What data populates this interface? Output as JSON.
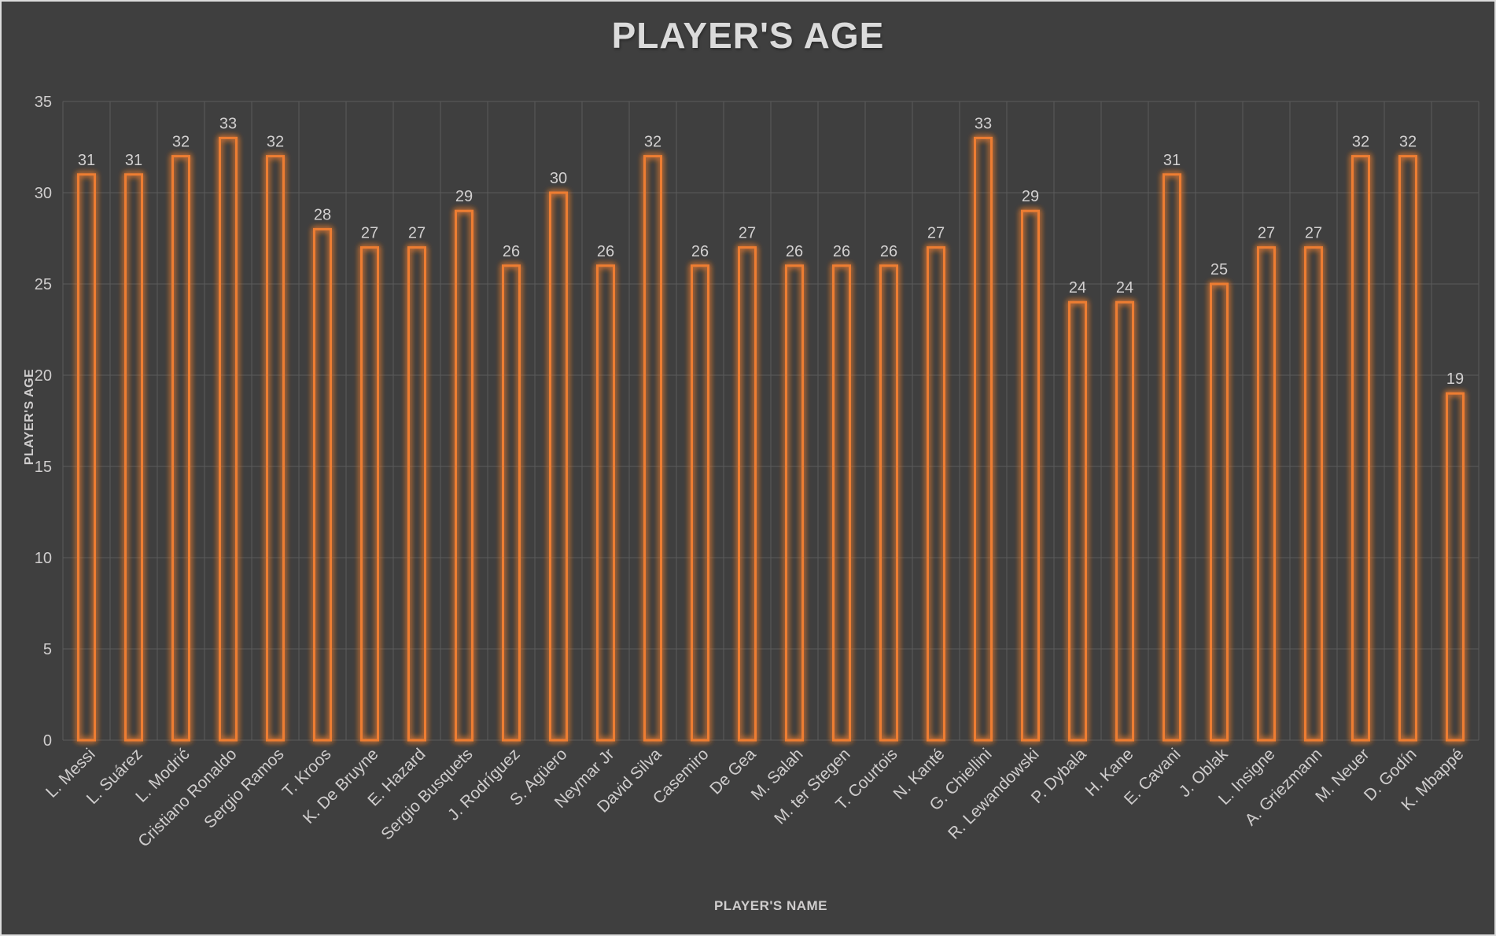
{
  "chart_data": {
    "type": "bar",
    "title": "PLAYER'S AGE",
    "xlabel": "PLAYER'S NAME",
    "ylabel": "PLAYER'S AGE",
    "categories": [
      "L. Messi",
      "L. Suárez",
      "L. Modrić",
      "Cristiano Ronaldo",
      "Sergio Ramos",
      "T. Kroos",
      "K. De Bruyne",
      "E. Hazard",
      "Sergio Busquets",
      "J. Rodríguez",
      "S. Agüero",
      "Neymar Jr",
      "David Silva",
      "Casemiro",
      "De Gea",
      "M. Salah",
      "M. ter Stegen",
      "T. Courtois",
      "N. Kanté",
      "G. Chiellini",
      "R. Lewandowski",
      "P. Dybala",
      "H. Kane",
      "E. Cavani",
      "J. Oblak",
      "L. Insigne",
      "A. Griezmann",
      "M. Neuer",
      "D. Godín",
      "K. Mbappé"
    ],
    "values": [
      31,
      31,
      32,
      33,
      32,
      28,
      27,
      27,
      29,
      26,
      30,
      26,
      32,
      26,
      27,
      26,
      26,
      26,
      27,
      33,
      29,
      24,
      24,
      31,
      25,
      27,
      27,
      32,
      32,
      19
    ],
    "ylim": [
      0,
      35
    ],
    "yticks": [
      0,
      5,
      10,
      15,
      20,
      25,
      30,
      35
    ],
    "grid": true,
    "legend": "none",
    "bar_style": "hollow-outline-glow",
    "label_rotation_deg": -45,
    "colors": {
      "background": "#3F3F3F",
      "frame_border": "#DCDCDC",
      "bar_stroke": "#ED7D31",
      "grid": "#5B5B5B",
      "tick_text": "#CFCDCD",
      "value_text": "#D2D0D0",
      "title_text": "#DBDBDB"
    }
  }
}
